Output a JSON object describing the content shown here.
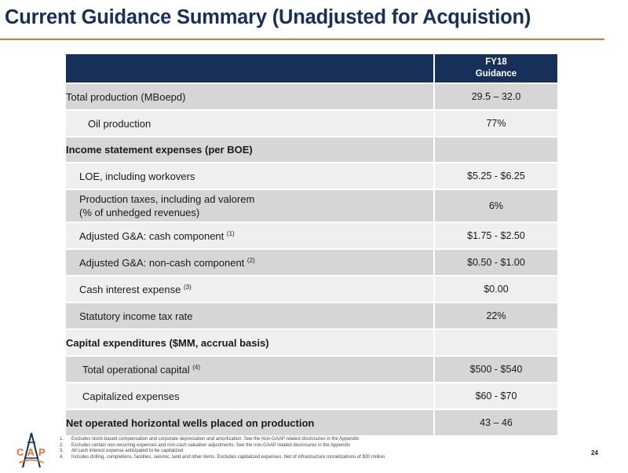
{
  "title": "Current Guidance Summary (Unadjusted for Acquistion)",
  "table": {
    "header": {
      "line1": "FY18",
      "line2": "Guidance"
    },
    "rows": [
      {
        "label": "Total production (MBoepd)",
        "sup": "",
        "value": "29.5 – 32.0"
      },
      {
        "label": "Oil production",
        "sup": "",
        "value": "77%"
      },
      {
        "label": "Income statement expenses (per BOE)",
        "sup": "",
        "value": ""
      },
      {
        "label": "LOE, including workovers",
        "sup": "",
        "value": "$5.25 - $6.25"
      },
      {
        "label": "Production taxes, including ad valorem",
        "label2": "(% of unhedged revenues)",
        "sup": "",
        "value": "6%"
      },
      {
        "label": "Adjusted G&A: cash component",
        "sup": "(1)",
        "value": "$1.75 - $2.50"
      },
      {
        "label": "Adjusted G&A: non-cash component",
        "sup": "(2)",
        "value": "$0.50 - $1.00"
      },
      {
        "label": "Cash interest expense",
        "sup": "(3)",
        "value": "$0.00"
      },
      {
        "label": "Statutory income tax rate",
        "sup": "",
        "value": "22%"
      },
      {
        "label": "Capital expenditures ($MM, accrual basis)",
        "sup": "",
        "value": ""
      },
      {
        "label": "Total operational capital",
        "sup": "(4)",
        "value": "$500 - $540"
      },
      {
        "label": "Capitalized expenses",
        "sup": "",
        "value": "$60 - $70"
      },
      {
        "label": "Net operated horizontal wells placed on production",
        "sup": "",
        "value": "43 – 46"
      }
    ]
  },
  "footnotes": [
    {
      "num": "1.",
      "text": "Excludes stock-based compensation and corporate depreciation and amortization. See the Non-GAAP related disclosures in the Appendix"
    },
    {
      "num": "2.",
      "text": "Excludes certain non-recurring expenses and non-cash valuation adjustments. See the non-GAAP related disclosures in the Appendix"
    },
    {
      "num": "3.",
      "text": "All cash interest expense anticipated to be capitalized"
    },
    {
      "num": "4.",
      "text": "Includes drilling, completions, facilities, seismic, land and other items. Excludes capitalized expenses. Net of infrastructure monetizations of $20 million"
    }
  ],
  "logo": {
    "letters": "CAP",
    "icon": "oil-derrick-logo-icon"
  },
  "page_number": "24",
  "colors": {
    "navy": "#17305a",
    "orange": "#e8742c",
    "row_dark": "#d6d6d6",
    "row_light": "#efefef"
  }
}
